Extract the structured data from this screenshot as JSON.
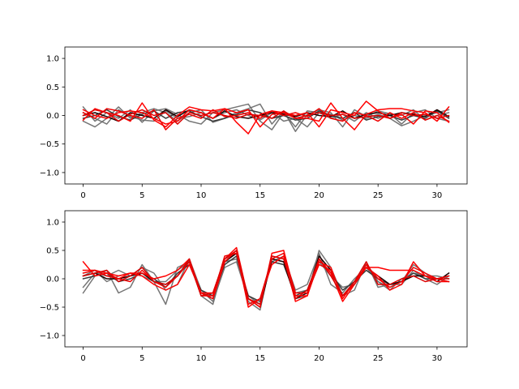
{
  "chart_data": [
    {
      "type": "line",
      "title": "",
      "xlabel": "",
      "ylabel": "",
      "xlim": [
        -1.55,
        32.55
      ],
      "ylim": [
        -1.2,
        1.2
      ],
      "xticks": [
        0,
        5,
        10,
        15,
        20,
        25,
        30
      ],
      "yticks": [
        -1.0,
        -0.5,
        0.0,
        0.5,
        1.0
      ],
      "ytick_labels": [
        "−1.0",
        "−0.5",
        "0.0",
        "0.5",
        "1.0"
      ],
      "grid": false,
      "x": [
        0,
        1,
        2,
        3,
        4,
        5,
        6,
        7,
        8,
        9,
        10,
        11,
        12,
        13,
        14,
        15,
        16,
        17,
        18,
        19,
        20,
        21,
        22,
        23,
        24,
        25,
        26,
        27,
        28,
        29,
        30,
        31
      ],
      "series": [
        {
          "color": "#6e6e6e",
          "values": [
            0.15,
            -0.1,
            0.05,
            -0.05,
            0.1,
            -0.12,
            0.08,
            0.12,
            0.02,
            -0.1,
            -0.15,
            0.05,
            0.1,
            0.15,
            0.2,
            -0.1,
            -0.25,
            0.05,
            -0.2,
            0.08,
            0.05,
            -0.05,
            0.02,
            -0.1,
            0.05,
            -0.05,
            0.03,
            0.0,
            0.1,
            -0.08,
            0.0,
            0.05
          ]
        },
        {
          "color": "#6e6e6e",
          "values": [
            -0.1,
            -0.2,
            -0.05,
            0.15,
            -0.05,
            0.05,
            0.12,
            0.05,
            -0.1,
            0.05,
            0.1,
            -0.12,
            -0.05,
            0.05,
            0.12,
            0.2,
            -0.15,
            0.08,
            -0.28,
            0.02,
            0.1,
            0.05,
            -0.2,
            0.1,
            -0.02,
            0.08,
            0.03,
            -0.15,
            0.05,
            0.1,
            -0.05,
            -0.1
          ]
        },
        {
          "color": "#6e6e6e",
          "values": [
            0.05,
            -0.05,
            -0.15,
            0.1,
            -0.02,
            -0.08,
            -0.1,
            0.08,
            -0.05,
            -0.02,
            0.05,
            -0.05,
            0.05,
            0.1,
            0.0,
            -0.08,
            0.05,
            -0.1,
            -0.05,
            -0.2,
            0.05,
            0.02,
            -0.08,
            0.0,
            -0.05,
            0.02,
            -0.05,
            -0.18,
            -0.1,
            0.0,
            0.05,
            0.1
          ]
        },
        {
          "color": "#3a3a3a",
          "values": [
            -0.05,
            0.0,
            0.1,
            -0.02,
            -0.08,
            0.02,
            0.08,
            -0.05,
            0.05,
            0.08,
            -0.02,
            -0.1,
            -0.05,
            0.02,
            0.1,
            0.05,
            -0.05,
            0.0,
            -0.08,
            -0.05,
            0.08,
            0.0,
            -0.05,
            0.05,
            -0.08,
            -0.02,
            0.0,
            -0.08,
            0.0,
            -0.05,
            0.08,
            -0.05
          ]
        },
        {
          "color": "#1a0000",
          "values": [
            0.0,
            0.05,
            -0.02,
            -0.1,
            0.05,
            0.0,
            -0.05,
            0.1,
            -0.02,
            0.1,
            0.05,
            -0.05,
            0.08,
            -0.02,
            -0.05,
            0.0,
            0.05,
            0.02,
            -0.02,
            0.05,
            0.0,
            -0.02,
            0.08,
            -0.05,
            0.02,
            0.05,
            0.0,
            0.05,
            0.02,
            -0.02,
            0.1,
            -0.02
          ]
        },
        {
          "color": "#ff0000",
          "values": [
            -0.08,
            0.12,
            0.05,
            0.0,
            -0.1,
            0.22,
            -0.08,
            -0.2,
            0.0,
            0.15,
            0.1,
            0.08,
            0.12,
            -0.12,
            -0.32,
            0.02,
            0.08,
            0.05,
            -0.05,
            -0.05,
            -0.1,
            0.22,
            -0.05,
            -0.25,
            0.02,
            0.1,
            0.12,
            0.12,
            0.08,
            0.05,
            -0.1,
            0.15
          ]
        },
        {
          "color": "#ff0000",
          "values": [
            0.1,
            0.0,
            -0.05,
            0.05,
            0.08,
            0.05,
            -0.05,
            -0.15,
            -0.1,
            0.1,
            0.05,
            -0.05,
            0.12,
            0.05,
            0.1,
            -0.2,
            0.02,
            0.05,
            0.0,
            0.05,
            -0.2,
            0.1,
            0.05,
            0.0,
            0.25,
            0.08,
            -0.05,
            0.02,
            -0.15,
            0.08,
            0.05,
            -0.12
          ]
        },
        {
          "color": "#ee0000",
          "values": [
            0.05,
            -0.05,
            0.12,
            0.08,
            0.0,
            -0.05,
            0.1,
            -0.25,
            -0.05,
            0.02,
            -0.05,
            0.1,
            -0.02,
            0.0,
            0.05,
            -0.05,
            0.08,
            0.0,
            0.05,
            -0.02,
            0.12,
            -0.05,
            -0.1,
            0.05,
            0.0,
            -0.1,
            0.05,
            -0.05,
            0.05,
            -0.08,
            0.0,
            -0.1
          ]
        },
        {
          "color": "#dd0000",
          "values": [
            0.0,
            0.1,
            0.05,
            -0.1,
            0.02,
            0.1,
            0.0,
            0.05,
            -0.15,
            0.05,
            0.0,
            0.05,
            0.0,
            -0.05,
            0.02,
            0.0,
            -0.05,
            0.08,
            -0.05,
            0.0,
            0.05,
            0.0,
            0.02,
            -0.05,
            -0.02,
            0.0,
            -0.05,
            0.05,
            0.0,
            0.02,
            -0.05,
            0.0
          ]
        }
      ]
    },
    {
      "type": "line",
      "title": "",
      "xlabel": "",
      "ylabel": "",
      "xlim": [
        -1.55,
        32.55
      ],
      "ylim": [
        -1.2,
        1.2
      ],
      "xticks": [
        0,
        5,
        10,
        15,
        20,
        25,
        30
      ],
      "yticks": [
        -1.0,
        -0.5,
        0.0,
        0.5,
        1.0
      ],
      "ytick_labels": [
        "−1.0",
        "−0.5",
        "0.0",
        "0.5",
        "1.0"
      ],
      "grid": false,
      "x": [
        0,
        1,
        2,
        3,
        4,
        5,
        6,
        7,
        8,
        9,
        10,
        11,
        12,
        13,
        14,
        15,
        16,
        17,
        18,
        19,
        20,
        21,
        22,
        23,
        24,
        25,
        26,
        27,
        28,
        29,
        30,
        31
      ],
      "series": [
        {
          "color": "#6e6e6e",
          "values": [
            -0.25,
            0.05,
            0.15,
            -0.25,
            -0.15,
            0.25,
            -0.05,
            -0.45,
            0.2,
            0.3,
            -0.3,
            -0.45,
            0.3,
            0.35,
            -0.3,
            -0.45,
            0.35,
            0.3,
            -0.35,
            -0.3,
            0.5,
            0.2,
            -0.3,
            -0.2,
            0.3,
            -0.15,
            -0.1,
            -0.1,
            0.15,
            0.0,
            -0.1,
            0.05
          ]
        },
        {
          "color": "#6e6e6e",
          "values": [
            -0.15,
            0.1,
            0.05,
            0.15,
            0.05,
            0.2,
            0.1,
            -0.2,
            -0.1,
            0.35,
            -0.2,
            -0.4,
            0.2,
            0.3,
            -0.35,
            -0.45,
            0.3,
            0.4,
            -0.2,
            -0.1,
            0.45,
            -0.1,
            -0.25,
            0.0,
            0.2,
            -0.05,
            -0.15,
            -0.05,
            0.25,
            0.1,
            -0.05,
            0.1
          ]
        },
        {
          "color": "#6e6e6e",
          "values": [
            0.05,
            0.15,
            -0.05,
            0.05,
            0.1,
            0.05,
            -0.05,
            -0.05,
            0.15,
            0.3,
            -0.25,
            -0.3,
            0.35,
            0.45,
            -0.4,
            -0.55,
            0.4,
            0.35,
            -0.25,
            -0.2,
            0.3,
            0.05,
            -0.15,
            -0.1,
            0.25,
            -0.05,
            -0.2,
            0.0,
            0.1,
            0.05,
            0.05,
            0.0
          ]
        },
        {
          "color": "#3a3a3a",
          "values": [
            0.0,
            0.05,
            0.1,
            -0.05,
            0.0,
            0.1,
            0.0,
            -0.15,
            0.1,
            0.25,
            -0.2,
            -0.3,
            0.25,
            0.4,
            -0.3,
            -0.4,
            0.3,
            0.25,
            -0.3,
            -0.2,
            0.35,
            0.1,
            -0.2,
            -0.05,
            0.15,
            0.0,
            -0.1,
            -0.05,
            0.1,
            0.0,
            0.0,
            0.05
          ]
        },
        {
          "color": "#1a0000",
          "values": [
            0.05,
            0.1,
            0.0,
            0.0,
            0.05,
            0.1,
            -0.05,
            -0.1,
            0.05,
            0.3,
            -0.25,
            -0.35,
            0.3,
            0.45,
            -0.35,
            -0.5,
            0.35,
            0.3,
            -0.35,
            -0.25,
            0.4,
            0.15,
            -0.3,
            -0.1,
            0.2,
            0.05,
            -0.1,
            -0.05,
            0.05,
            0.05,
            -0.05,
            0.1
          ]
        },
        {
          "color": "#ff0000",
          "values": [
            0.3,
            0.05,
            0.1,
            0.0,
            0.1,
            0.1,
            0.0,
            0.05,
            0.15,
            0.35,
            -0.25,
            -0.25,
            0.35,
            0.55,
            -0.35,
            -0.5,
            0.45,
            0.5,
            -0.3,
            -0.3,
            0.3,
            0.2,
            -0.35,
            -0.05,
            0.2,
            0.2,
            0.15,
            0.15,
            0.15,
            0.05,
            0.0,
            0.05
          ]
        },
        {
          "color": "#ff0000",
          "values": [
            0.15,
            0.15,
            0.1,
            0.05,
            0.1,
            0.05,
            -0.1,
            -0.2,
            -0.1,
            0.25,
            -0.25,
            -0.35,
            0.3,
            0.5,
            -0.5,
            -0.35,
            0.25,
            0.4,
            -0.4,
            -0.3,
            0.35,
            0.1,
            -0.4,
            -0.1,
            0.2,
            0.05,
            -0.2,
            -0.1,
            0.3,
            0.05,
            -0.05,
            -0.05
          ]
        },
        {
          "color": "#ee0000",
          "values": [
            0.1,
            0.15,
            0.05,
            0.0,
            -0.05,
            0.15,
            -0.05,
            -0.15,
            0.05,
            0.3,
            -0.3,
            -0.3,
            0.4,
            0.45,
            -0.45,
            -0.35,
            0.35,
            0.45,
            -0.25,
            -0.25,
            0.25,
            0.15,
            -0.3,
            -0.1,
            0.25,
            0.0,
            -0.15,
            -0.05,
            0.2,
            0.1,
            0.0,
            -0.05
          ]
        },
        {
          "color": "#dd0000",
          "values": [
            0.05,
            0.1,
            0.15,
            -0.05,
            0.05,
            0.2,
            -0.05,
            -0.1,
            0.05,
            0.35,
            -0.3,
            -0.25,
            0.35,
            0.5,
            -0.35,
            -0.45,
            0.4,
            0.35,
            -0.35,
            -0.2,
            0.35,
            0.05,
            -0.3,
            -0.05,
            0.3,
            -0.1,
            -0.1,
            0.0,
            0.05,
            -0.05,
            0.0,
            0.0
          ]
        }
      ]
    }
  ]
}
